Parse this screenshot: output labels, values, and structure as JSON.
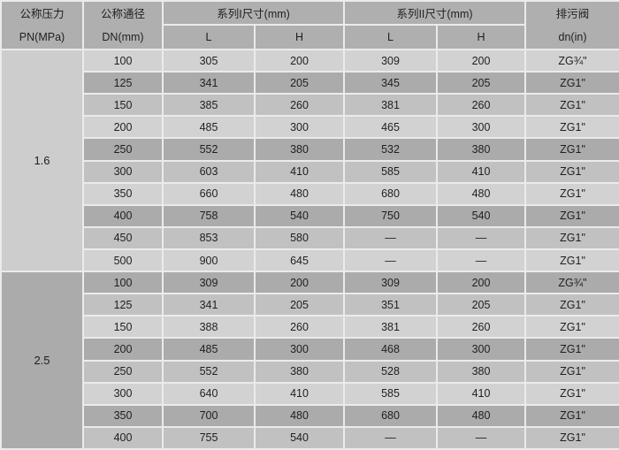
{
  "colors": {
    "border": "#ebebeb",
    "header_bg": "#afafaf",
    "row_light": "#d2d2d2",
    "row_mid": "#c1c1c1",
    "row_dark": "#ababab",
    "pn_cell_1_bg": "#cdcdcd",
    "pn_cell_2_bg": "#ababab",
    "text": "#1f1f1f"
  },
  "table": {
    "header": {
      "pn": [
        "公称压力",
        "PN(MPa)"
      ],
      "dn": [
        "公称通径",
        "DN(mm)"
      ],
      "series1": "系列I尺寸(mm)",
      "series2": "系列II尺寸(mm)",
      "sub_l1": "L",
      "sub_h1": "H",
      "sub_l2": "L",
      "sub_h2": "H",
      "drain": [
        "排污阀",
        "dn(in)"
      ]
    },
    "sections": [
      {
        "pn": "1.6",
        "pn_shade": "light",
        "rows": [
          {
            "dn": "100",
            "l1": "305",
            "h1": "200",
            "l2": "309",
            "h2": "200",
            "drain": "ZG¾\"",
            "shade": "light"
          },
          {
            "dn": "125",
            "l1": "341",
            "h1": "205",
            "l2": "345",
            "h2": "205",
            "drain": "ZG1\"",
            "shade": "dark"
          },
          {
            "dn": "150",
            "l1": "385",
            "h1": "260",
            "l2": "381",
            "h2": "260",
            "drain": "ZG1\"",
            "shade": "mid"
          },
          {
            "dn": "200",
            "l1": "485",
            "h1": "300",
            "l2": "465",
            "h2": "300",
            "drain": "ZG1\"",
            "shade": "light"
          },
          {
            "dn": "250",
            "l1": "552",
            "h1": "380",
            "l2": "532",
            "h2": "380",
            "drain": "ZG1\"",
            "shade": "dark"
          },
          {
            "dn": "300",
            "l1": "603",
            "h1": "410",
            "l2": "585",
            "h2": "410",
            "drain": "ZG1\"",
            "shade": "mid"
          },
          {
            "dn": "350",
            "l1": "660",
            "h1": "480",
            "l2": "680",
            "h2": "480",
            "drain": "ZG1\"",
            "shade": "light"
          },
          {
            "dn": "400",
            "l1": "758",
            "h1": "540",
            "l2": "750",
            "h2": "540",
            "drain": "ZG1\"",
            "shade": "dark"
          },
          {
            "dn": "450",
            "l1": "853",
            "h1": "580",
            "l2": "—",
            "h2": "—",
            "drain": "ZG1\"",
            "shade": "mid"
          },
          {
            "dn": "500",
            "l1": "900",
            "h1": "645",
            "l2": "—",
            "h2": "—",
            "drain": "ZG1\"",
            "shade": "light"
          }
        ]
      },
      {
        "pn": "2.5",
        "pn_shade": "dark",
        "rows": [
          {
            "dn": "100",
            "l1": "309",
            "h1": "200",
            "l2": "309",
            "h2": "200",
            "drain": "ZG¾\"",
            "shade": "dark"
          },
          {
            "dn": "125",
            "l1": "341",
            "h1": "205",
            "l2": "351",
            "h2": "205",
            "drain": "ZG1\"",
            "shade": "mid"
          },
          {
            "dn": "150",
            "l1": "388",
            "h1": "260",
            "l2": "381",
            "h2": "260",
            "drain": "ZG1\"",
            "shade": "light"
          },
          {
            "dn": "200",
            "l1": "485",
            "h1": "300",
            "l2": "468",
            "h2": "300",
            "drain": "ZG1\"",
            "shade": "dark"
          },
          {
            "dn": "250",
            "l1": "552",
            "h1": "380",
            "l2": "528",
            "h2": "380",
            "drain": "ZG1\"",
            "shade": "mid"
          },
          {
            "dn": "300",
            "l1": "640",
            "h1": "410",
            "l2": "585",
            "h2": "410",
            "drain": "ZG1\"",
            "shade": "light"
          },
          {
            "dn": "350",
            "l1": "700",
            "h1": "480",
            "l2": "680",
            "h2": "480",
            "drain": "ZG1\"",
            "shade": "dark"
          },
          {
            "dn": "400",
            "l1": "755",
            "h1": "540",
            "l2": "—",
            "h2": "—",
            "drain": "ZG1\"",
            "shade": "mid"
          }
        ]
      }
    ]
  }
}
